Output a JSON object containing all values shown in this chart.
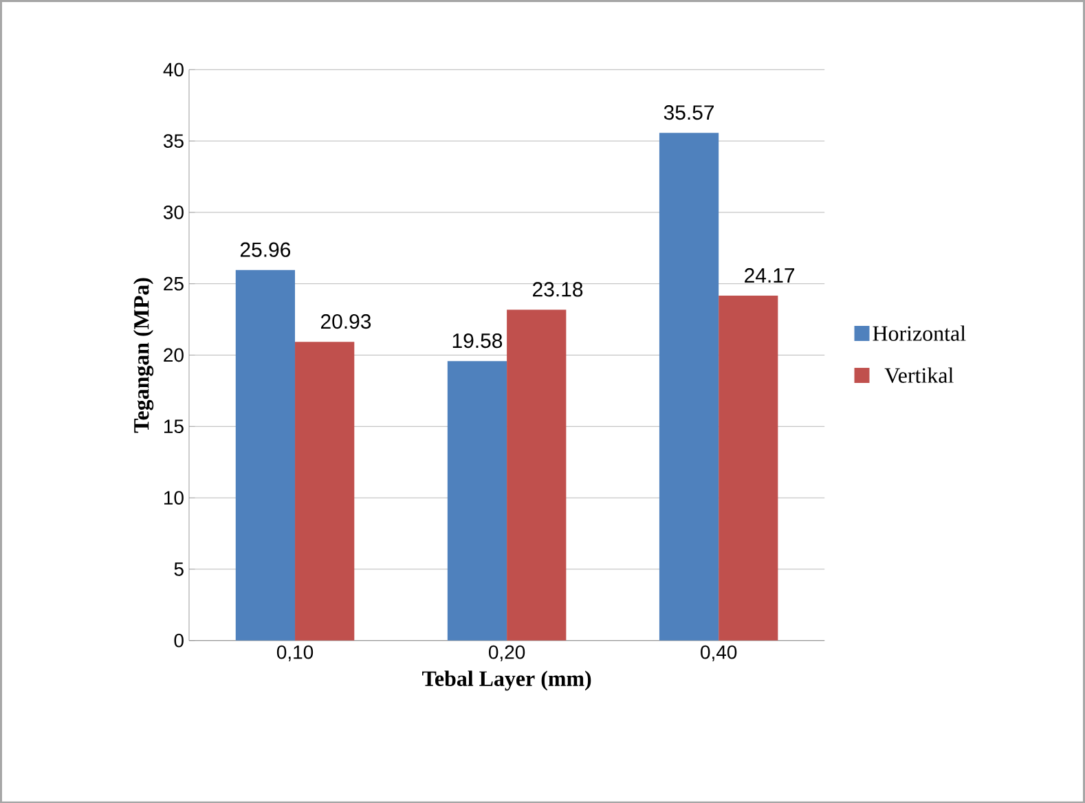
{
  "chart_data": {
    "type": "bar",
    "xlabel": "Tebal Layer (mm)",
    "ylabel": "Tegangan (MPa)",
    "categories": [
      "0,10",
      "0,20",
      "0,40"
    ],
    "series": [
      {
        "name": "Horizontal",
        "color": "#4f81bd",
        "values": [
          25.96,
          19.58,
          35.57
        ]
      },
      {
        "name": "Vertikal",
        "color": "#c0504d",
        "values": [
          20.93,
          23.18,
          24.17
        ]
      }
    ],
    "ylim": [
      0,
      40
    ],
    "yticks": [
      0,
      5,
      10,
      15,
      20,
      25,
      30,
      35,
      40
    ],
    "grid": "y",
    "legend": "right",
    "data_labels": true
  }
}
